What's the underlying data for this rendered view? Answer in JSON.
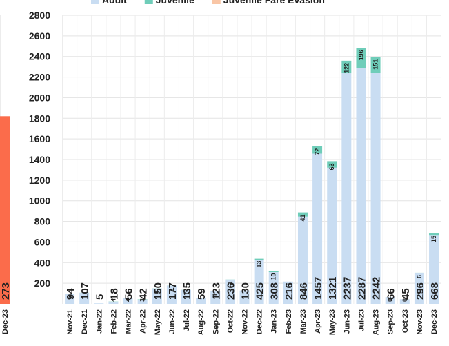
{
  "chart_data": [
    {
      "type": "stacked_bar",
      "categories": [
        "Nov-21",
        "Dec-21",
        "Jan-22",
        "Feb-22",
        "Mar-22",
        "Apr-22",
        "May-22",
        "Jun-22",
        "Jul-22",
        "Aug-22",
        "Sep-22",
        "Oct-22",
        "Nov-22",
        "Dec-22",
        "Jan-23",
        "Feb-23",
        "Mar-23",
        "Apr-23",
        "May-23",
        "Jun-23",
        "Jul-23",
        "Aug-23",
        "Sep-23",
        "Oct-23",
        "Nov-23",
        "Dec-23"
      ],
      "series": [
        {
          "name": "Adult",
          "color": "#c9ddf2",
          "values": [
            94,
            107,
            5,
            18,
            56,
            42,
            150,
            177,
            135,
            59,
            123,
            236,
            130,
            425,
            308,
            216,
            846,
            1457,
            1321,
            2237,
            2287,
            2242,
            66,
            45,
            296,
            668
          ]
        },
        {
          "name": "Juvenile",
          "color": "#6fcdb9",
          "values": [
            5,
            1,
            null,
            4,
            4,
            3,
            1,
            1,
            1,
            null,
            1,
            1,
            null,
            13,
            10,
            null,
            41,
            72,
            63,
            122,
            196,
            151,
            0,
            0,
            6,
            15
          ]
        },
        {
          "name": "Juvenile Fare Evasion",
          "color": "#f9c6a6",
          "values": [
            null,
            null,
            null,
            null,
            null,
            null,
            null,
            null,
            null,
            null,
            null,
            null,
            null,
            null,
            null,
            null,
            null,
            null,
            null,
            null,
            null,
            null,
            null,
            null,
            null,
            null
          ]
        }
      ],
      "ylim": [
        0,
        2800
      ],
      "yticks": [
        200,
        400,
        600,
        800,
        1000,
        1200,
        1400,
        1600,
        1800,
        2000,
        2200,
        2400,
        2600,
        2800
      ],
      "grid": true
    },
    {
      "type": "bar",
      "categories": [
        "Dec-23"
      ],
      "values": [
        273
      ],
      "color": "#fb6c4b",
      "ylim": [
        0,
        420
      ]
    }
  ]
}
